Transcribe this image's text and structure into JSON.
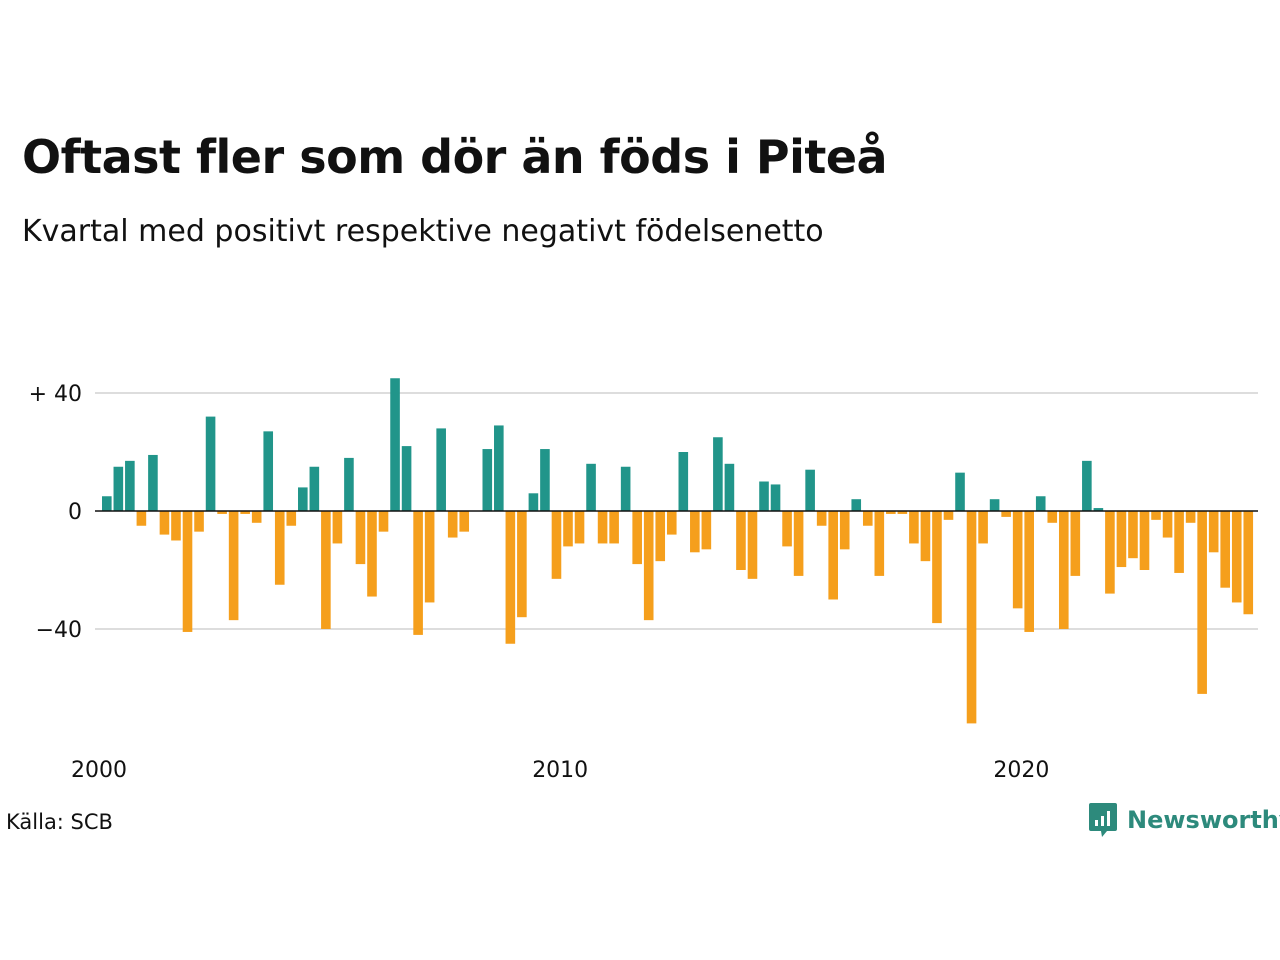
{
  "title": "Oftast fler som dör än föds i Piteå",
  "subtitle": "Kvartal med positivt respektive negativt födelsenetto",
  "source": "Källa: SCB",
  "brand": {
    "name": "Newsworthy",
    "icon": "newsworthy-logo-icon",
    "color": "#2d8a7c"
  },
  "chart_data": {
    "type": "bar",
    "colors": {
      "positive": "#21958a",
      "negative": "#f59f1c",
      "grid": "#dddddd",
      "zero_line": "#111111"
    },
    "grid": true,
    "ylim": [
      -75,
      45
    ],
    "y_ticks": [
      {
        "value": 40,
        "label": "+ 40"
      },
      {
        "value": 0,
        "label": "0"
      },
      {
        "value": -40,
        "label": "−40"
      }
    ],
    "x_ticks": [
      {
        "value": 2000,
        "label": "2000"
      },
      {
        "value": 2010,
        "label": "2010"
      },
      {
        "value": 2020,
        "label": "2020"
      }
    ],
    "x_start": 2000,
    "x_step": 0.25,
    "values": [
      5,
      15,
      17,
      -5,
      19,
      -8,
      -10,
      -41,
      -7,
      32,
      -1,
      -37,
      -1,
      -4,
      27,
      -25,
      -5,
      8,
      15,
      -40,
      -11,
      18,
      -18,
      -29,
      -7,
      45,
      22,
      -42,
      -31,
      28,
      -9,
      -7,
      0,
      21,
      29,
      -45,
      -36,
      6,
      21,
      -23,
      -12,
      -11,
      16,
      -11,
      -11,
      15,
      -18,
      -37,
      -17,
      -8,
      20,
      -14,
      -13,
      25,
      16,
      -20,
      -23,
      10,
      9,
      -12,
      -22,
      14,
      -5,
      -30,
      -13,
      4,
      -5,
      -22,
      -1,
      -1,
      -11,
      -17,
      -38,
      -3,
      13,
      -72,
      -11,
      4,
      -2,
      -33,
      -41,
      5,
      -4,
      -40,
      -22,
      17,
      1,
      -28,
      -19,
      -16,
      -20,
      -3,
      -9,
      -21,
      -4,
      -62,
      -14,
      -26,
      -31,
      -35
    ]
  }
}
